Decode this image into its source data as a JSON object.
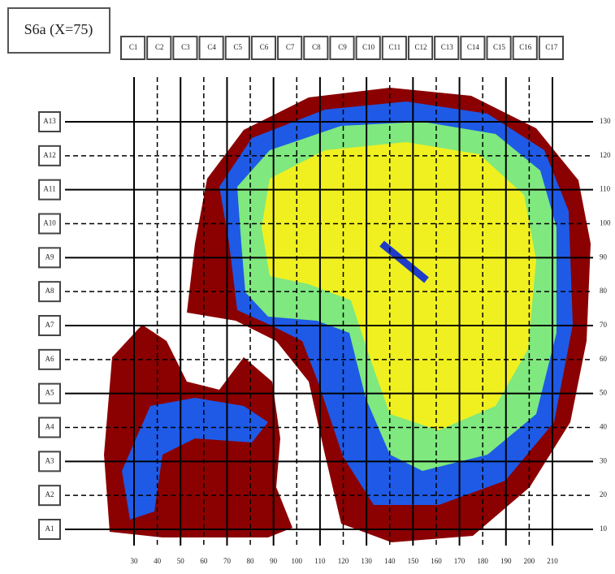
{
  "title": "S6a (X=75)",
  "column_labels": [
    "C1",
    "C2",
    "C3",
    "C4",
    "C5",
    "C6",
    "C7",
    "C8",
    "C9",
    "C10",
    "C11",
    "C12",
    "C13",
    "C14",
    "C15",
    "C16",
    "C17"
  ],
  "row_labels": [
    "A13",
    "A12",
    "A11",
    "A10",
    "A9",
    "A8",
    "A7",
    "A6",
    "A5",
    "A4",
    "A3",
    "A2",
    "A1"
  ],
  "y_axis_labels": [
    "130",
    "120",
    "110",
    "100",
    "90",
    "80",
    "70",
    "60",
    "50",
    "40",
    "30",
    "20",
    "10"
  ],
  "x_axis_labels": [
    "30",
    "40",
    "50",
    "60",
    "70",
    "80",
    "90",
    "100",
    "110",
    "120",
    "130",
    "140",
    "150",
    "160",
    "170",
    "180",
    "190",
    "200",
    "210"
  ]
}
